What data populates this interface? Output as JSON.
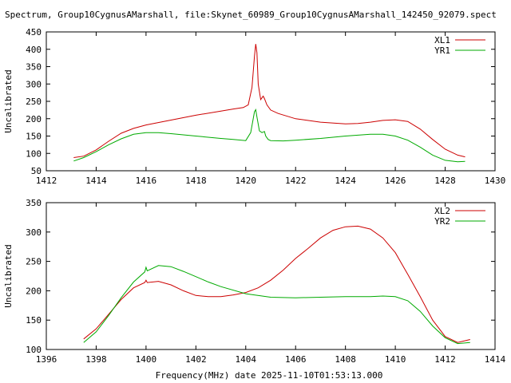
{
  "title": "Spectrum, Group10CygnusAMarshall, file:Skynet_60989_Group10CygnusAMarshall_142450_92079.spect",
  "footer": "Frequency(MHz) date 2025-11-10T01:53:13.000",
  "chart_data": [
    {
      "type": "line",
      "ylabel": "Uncalibrated",
      "xlim": [
        1412,
        1430
      ],
      "ylim": [
        50,
        450
      ],
      "xticks": [
        1412,
        1414,
        1416,
        1418,
        1420,
        1422,
        1424,
        1426,
        1428,
        1430
      ],
      "yticks": [
        50,
        100,
        150,
        200,
        250,
        300,
        350,
        400,
        450
      ],
      "legend_position": "top-right",
      "series": [
        {
          "name": "XL1",
          "color": "#cc0000",
          "x": [
            1413.1,
            1413.5,
            1414,
            1414.5,
            1415,
            1415.5,
            1416,
            1417,
            1418,
            1419,
            1419.5,
            1419.9,
            1420.1,
            1420.25,
            1420.35,
            1420.4,
            1420.45,
            1420.5,
            1420.6,
            1420.7,
            1420.75,
            1420.85,
            1421,
            1421.3,
            1422,
            1423,
            1424,
            1424.5,
            1425,
            1425.5,
            1426,
            1426.5,
            1427,
            1427.5,
            1428,
            1428.5,
            1428.8
          ],
          "y": [
            88,
            92,
            110,
            135,
            158,
            172,
            182,
            196,
            210,
            222,
            228,
            232,
            240,
            290,
            380,
            415,
            390,
            300,
            255,
            265,
            258,
            240,
            225,
            215,
            200,
            190,
            185,
            186,
            190,
            195,
            197,
            192,
            170,
            140,
            112,
            95,
            90
          ]
        },
        {
          "name": "YR1",
          "color": "#00aa00",
          "x": [
            1413.1,
            1413.5,
            1414,
            1414.5,
            1415,
            1415.5,
            1416,
            1416.5,
            1417,
            1418,
            1419,
            1419.5,
            1420,
            1420.2,
            1420.35,
            1420.4,
            1420.45,
            1420.55,
            1420.65,
            1420.75,
            1420.8,
            1420.9,
            1421,
            1421.5,
            1422,
            1423,
            1424,
            1425,
            1425.5,
            1426,
            1426.5,
            1427,
            1427.5,
            1428,
            1428.5,
            1428.8
          ],
          "y": [
            78,
            88,
            105,
            125,
            142,
            155,
            160,
            160,
            157,
            150,
            143,
            140,
            137,
            160,
            220,
            226,
            205,
            165,
            160,
            163,
            150,
            140,
            137,
            136,
            138,
            143,
            150,
            155,
            155,
            150,
            138,
            118,
            95,
            80,
            76,
            77
          ]
        }
      ]
    },
    {
      "type": "line",
      "ylabel": "Uncalibrated",
      "xlim": [
        1396,
        1414
      ],
      "ylim": [
        100,
        350
      ],
      "xticks": [
        1396,
        1398,
        1400,
        1402,
        1404,
        1406,
        1408,
        1410,
        1412,
        1414
      ],
      "yticks": [
        100,
        150,
        200,
        250,
        300,
        350
      ],
      "legend_position": "top-right",
      "series": [
        {
          "name": "XL2",
          "color": "#cc0000",
          "x": [
            1397.5,
            1398,
            1398.5,
            1399,
            1399.5,
            1399.95,
            1400,
            1400.05,
            1400.5,
            1401,
            1401.5,
            1402,
            1402.5,
            1403,
            1403.5,
            1404,
            1404.5,
            1405,
            1405.5,
            1406,
            1406.5,
            1407,
            1407.5,
            1408,
            1408.5,
            1409,
            1409.5,
            1410,
            1410.5,
            1411,
            1411.5,
            1412,
            1412.5,
            1413
          ],
          "y": [
            118,
            135,
            160,
            185,
            205,
            214,
            218,
            214,
            216,
            210,
            200,
            192,
            190,
            190,
            193,
            197,
            205,
            218,
            235,
            255,
            272,
            290,
            303,
            309,
            310,
            305,
            290,
            265,
            228,
            190,
            150,
            122,
            112,
            117
          ]
        },
        {
          "name": "YR2",
          "color": "#00aa00",
          "x": [
            1397.5,
            1398,
            1398.5,
            1399,
            1399.5,
            1399.95,
            1400,
            1400.05,
            1400.5,
            1401,
            1401.5,
            1402,
            1402.5,
            1403,
            1404,
            1405,
            1406,
            1407,
            1408,
            1409,
            1409.5,
            1410,
            1410.5,
            1411,
            1411.5,
            1412,
            1412.5,
            1413
          ],
          "y": [
            112,
            130,
            158,
            188,
            215,
            232,
            240,
            234,
            243,
            241,
            233,
            224,
            215,
            207,
            195,
            189,
            188,
            189,
            190,
            190,
            191,
            190,
            183,
            165,
            140,
            120,
            110,
            112
          ]
        }
      ]
    }
  ]
}
